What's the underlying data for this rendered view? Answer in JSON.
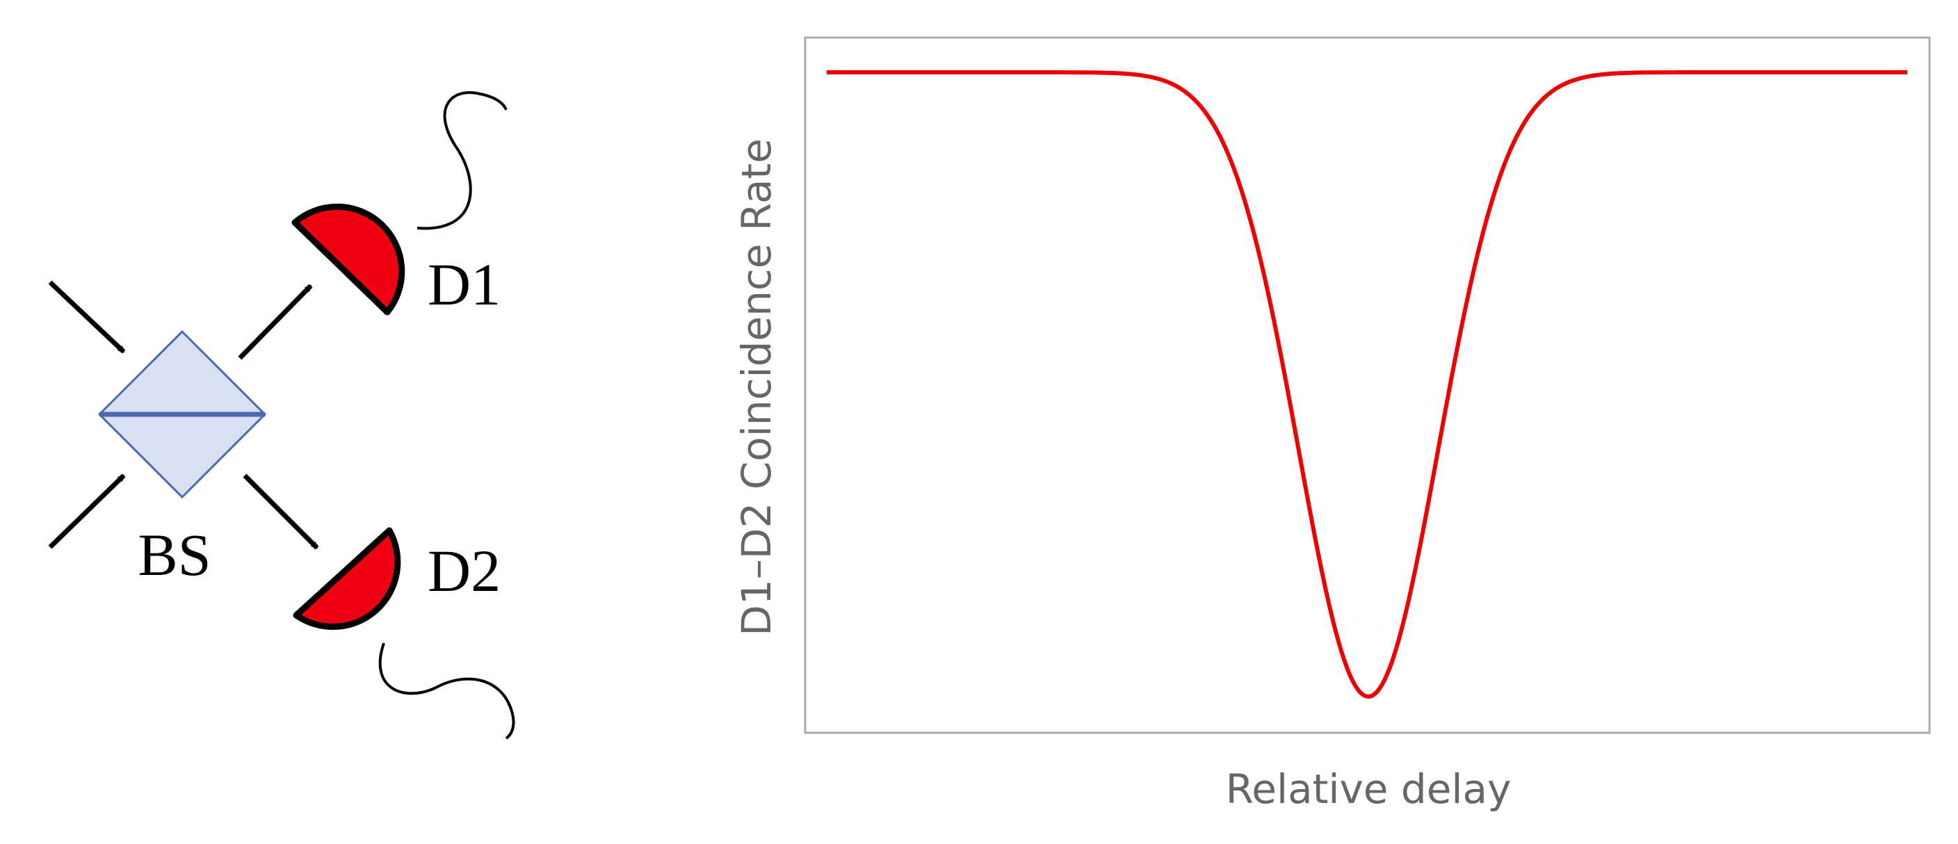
{
  "diagram": {
    "beam_splitter": {
      "label": "BS"
    },
    "detectors": [
      {
        "label": "D1"
      },
      {
        "label": "D2"
      }
    ]
  },
  "plot": {
    "y_label": "D1–D2  Coincidence Rate",
    "x_label": "Relative delay"
  }
}
